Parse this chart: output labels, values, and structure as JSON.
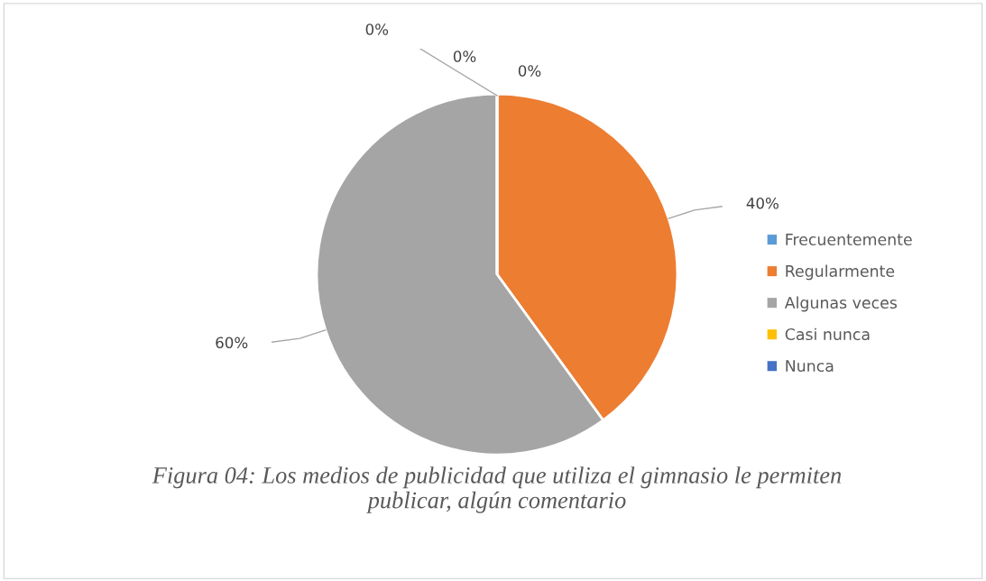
{
  "chart_data": {
    "type": "pie",
    "title": "Figura 04: Los medios de publicidad que utiliza el gimnasio le permiten publicar, algún comentario",
    "categories": [
      "Frecuentemente",
      "Regularmente",
      "Algunas veces",
      "Casi nunca",
      "Nunca"
    ],
    "values": [
      0,
      40,
      60,
      0,
      0
    ],
    "colors": [
      "#5b9bd5",
      "#ed7d31",
      "#a5a5a5",
      "#ffc000",
      "#4472c4"
    ],
    "value_labels": [
      "0%",
      "40%",
      "60%",
      "0%",
      "0%"
    ],
    "legend": "right"
  }
}
